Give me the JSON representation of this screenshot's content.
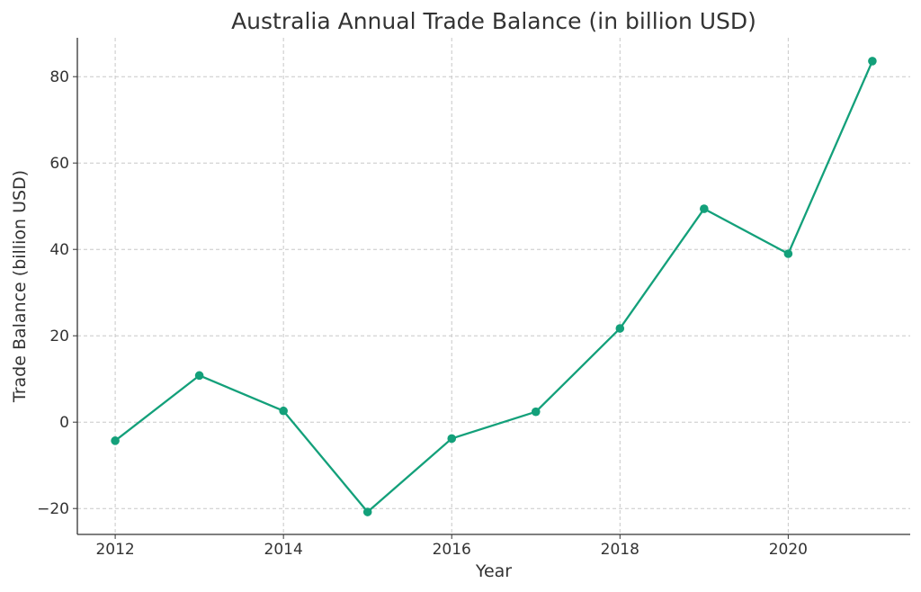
{
  "chart_data": {
    "type": "line",
    "title": "Australia Annual Trade Balance (in billion USD)",
    "xlabel": "Year",
    "ylabel": "Trade Balance (billion USD)",
    "xlim": [
      2011.55,
      2021.45
    ],
    "ylim": [
      -26,
      89
    ],
    "x_ticks": [
      2012,
      2014,
      2016,
      2018,
      2020
    ],
    "y_ticks": [
      -20,
      0,
      20,
      40,
      60,
      80
    ],
    "y_tick_labels": [
      "−20",
      "0",
      "20",
      "40",
      "60",
      "80"
    ],
    "grid": true,
    "x": [
      2012,
      2013,
      2014,
      2015,
      2016,
      2017,
      2018,
      2019,
      2020,
      2021
    ],
    "series": [
      {
        "values": [
          -4.3,
          10.8,
          2.6,
          -20.8,
          -3.8,
          2.4,
          21.7,
          49.4,
          39.0,
          83.6
        ],
        "color": "#13a07a"
      }
    ]
  }
}
